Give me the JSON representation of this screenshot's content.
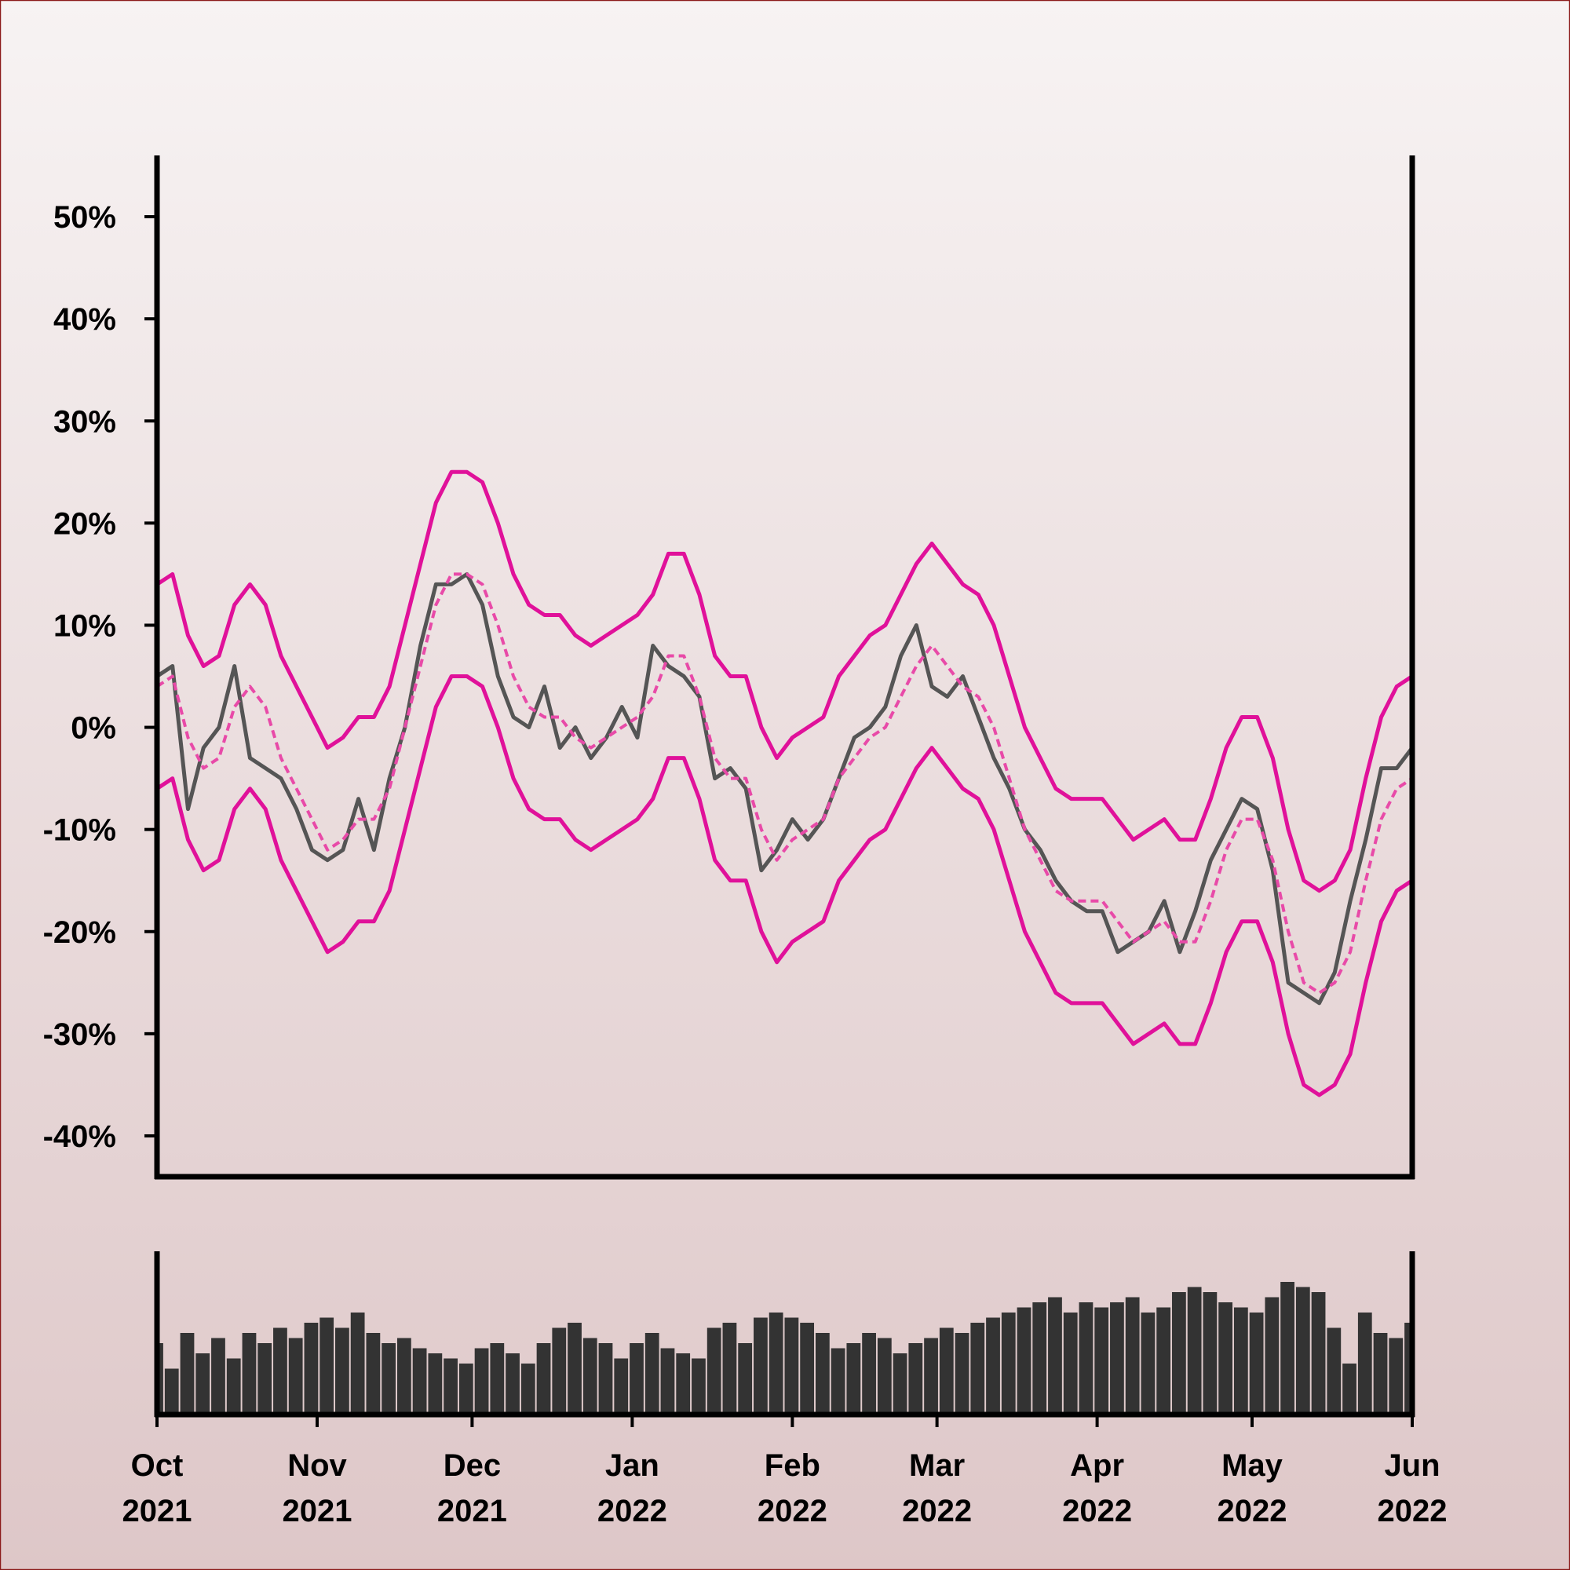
{
  "chart_data": [
    {
      "type": "line",
      "x": [
        0,
        3,
        6,
        9,
        12,
        15,
        18,
        21,
        24,
        27,
        30,
        33,
        36,
        39,
        42,
        45,
        48,
        51,
        54,
        57,
        60,
        63,
        66,
        69,
        72,
        75,
        78,
        81,
        84,
        87,
        90,
        93,
        96,
        99,
        102,
        105,
        108,
        111,
        114,
        117,
        120,
        123,
        126,
        129,
        132,
        135,
        138,
        141,
        144,
        147,
        150,
        153,
        156,
        159,
        162,
        165,
        168,
        171,
        174,
        177,
        180,
        183,
        186,
        189,
        192,
        195,
        198,
        201,
        204,
        207,
        210,
        213,
        216,
        219,
        222,
        225,
        228,
        231,
        234,
        237,
        240,
        243
      ],
      "xlim": [
        0,
        243
      ],
      "ylim": [
        -44,
        56
      ],
      "yticks": [
        {
          "value": -40,
          "label": "-40%"
        },
        {
          "value": -30,
          "label": "-30%"
        },
        {
          "value": -20,
          "label": "-20%"
        },
        {
          "value": -10,
          "label": "-10%"
        },
        {
          "value": 0,
          "label": "0%"
        },
        {
          "value": 10,
          "label": "10%"
        },
        {
          "value": 20,
          "label": "20%"
        },
        {
          "value": 30,
          "label": "30%"
        },
        {
          "value": 40,
          "label": "40%"
        },
        {
          "value": 50,
          "label": "50%"
        }
      ],
      "series": [
        {
          "color": "#e0119a",
          "style": "solid",
          "values": [
            14,
            15,
            9,
            6,
            7,
            12,
            14,
            12,
            7,
            4,
            1,
            -2,
            -1,
            1,
            1,
            4,
            10,
            16,
            22,
            25,
            25,
            24,
            20,
            15,
            12,
            11,
            11,
            9,
            8,
            9,
            10,
            11,
            13,
            17,
            17,
            13,
            7,
            5,
            5,
            0,
            -3,
            -1,
            0,
            1,
            5,
            7,
            9,
            10,
            13,
            16,
            18,
            16,
            14,
            13,
            10,
            5,
            0,
            -3,
            -6,
            -7,
            -7,
            -7,
            -9,
            -11,
            -10,
            -9,
            -11,
            -11,
            -7,
            -2,
            1,
            1,
            -3,
            -10,
            -15,
            -16,
            -15,
            -12,
            -5,
            1,
            4,
            5
          ]
        },
        {
          "color": "#e0119a",
          "style": "solid",
          "values": [
            -6,
            -5,
            -11,
            -14,
            -13,
            -8,
            -6,
            -8,
            -13,
            -16,
            -19,
            -22,
            -21,
            -19,
            -19,
            -16,
            -10,
            -4,
            2,
            5,
            5,
            4,
            0,
            -5,
            -8,
            -9,
            -9,
            -11,
            -12,
            -11,
            -10,
            -9,
            -7,
            -3,
            -3,
            -7,
            -13,
            -15,
            -15,
            -20,
            -23,
            -21,
            -20,
            -19,
            -15,
            -13,
            -11,
            -10,
            -7,
            -4,
            -2,
            -4,
            -6,
            -7,
            -10,
            -15,
            -20,
            -23,
            -26,
            -27,
            -27,
            -27,
            -29,
            -31,
            -30,
            -29,
            -31,
            -31,
            -27,
            -22,
            -19,
            -19,
            -23,
            -30,
            -35,
            -36,
            -35,
            -32,
            -25,
            -19,
            -16,
            -15
          ]
        },
        {
          "color": "#555555",
          "style": "solid",
          "values": [
            5,
            6,
            -8,
            -2,
            0,
            6,
            -3,
            -4,
            -5,
            -8,
            -12,
            -13,
            -12,
            -7,
            -12,
            -5,
            0,
            8,
            14,
            14,
            15,
            12,
            5,
            1,
            0,
            4,
            -2,
            0,
            -3,
            -1,
            2,
            -1,
            8,
            6,
            5,
            3,
            -5,
            -4,
            -6,
            -14,
            -12,
            -9,
            -11,
            -9,
            -5,
            -1,
            0,
            2,
            7,
            10,
            4,
            3,
            5,
            1,
            -3,
            -6,
            -10,
            -12,
            -15,
            -17,
            -18,
            -18,
            -22,
            -21,
            -20,
            -17,
            -22,
            -18,
            -13,
            -10,
            -7,
            -8,
            -14,
            -25,
            -26,
            -27,
            -24,
            -17,
            -11,
            -4,
            -4,
            -2
          ]
        },
        {
          "color": "#e84aa8",
          "style": "dashed",
          "values": [
            4,
            5,
            -1,
            -4,
            -3,
            2,
            4,
            2,
            -3,
            -6,
            -9,
            -12,
            -11,
            -9,
            -9,
            -6,
            0,
            6,
            12,
            15,
            15,
            14,
            10,
            5,
            2,
            1,
            1,
            -1,
            -2,
            -1,
            0,
            1,
            3,
            7,
            7,
            3,
            -3,
            -5,
            -5,
            -10,
            -13,
            -11,
            -10,
            -9,
            -5,
            -3,
            -1,
            0,
            3,
            6,
            8,
            6,
            4,
            3,
            0,
            -5,
            -10,
            -13,
            -16,
            -17,
            -17,
            -17,
            -19,
            -21,
            -20,
            -19,
            -21,
            -21,
            -17,
            -12,
            -9,
            -9,
            -13,
            -20,
            -25,
            -26,
            -25,
            -22,
            -15,
            -9,
            -6,
            -5
          ]
        }
      ]
    },
    {
      "type": "bar",
      "x": [
        0,
        3,
        6,
        9,
        12,
        15,
        18,
        21,
        24,
        27,
        30,
        33,
        36,
        39,
        42,
        45,
        48,
        51,
        54,
        57,
        60,
        63,
        66,
        69,
        72,
        75,
        78,
        81,
        84,
        87,
        90,
        93,
        96,
        99,
        102,
        105,
        108,
        111,
        114,
        117,
        120,
        123,
        126,
        129,
        132,
        135,
        138,
        141,
        144,
        147,
        150,
        153,
        156,
        159,
        162,
        165,
        168,
        171,
        174,
        177,
        180,
        183,
        186,
        189,
        192,
        195,
        198,
        201,
        204,
        207,
        210,
        213,
        216,
        219,
        222,
        225,
        228,
        231,
        234,
        237,
        240,
        243
      ],
      "values": [
        70,
        45,
        80,
        60,
        75,
        55,
        80,
        70,
        85,
        75,
        90,
        95,
        85,
        100,
        80,
        70,
        75,
        65,
        60,
        55,
        50,
        65,
        70,
        60,
        50,
        70,
        85,
        90,
        75,
        70,
        55,
        70,
        80,
        65,
        60,
        55,
        85,
        90,
        70,
        95,
        100,
        95,
        90,
        80,
        65,
        70,
        80,
        75,
        60,
        70,
        75,
        85,
        80,
        90,
        95,
        100,
        105,
        110,
        115,
        100,
        110,
        105,
        110,
        115,
        100,
        105,
        120,
        125,
        120,
        110,
        105,
        100,
        115,
        130,
        125,
        120,
        85,
        50,
        100,
        80,
        75,
        90
      ],
      "color": "#333333",
      "xlim": [
        0,
        243
      ],
      "ylim": [
        0,
        160
      ],
      "xticks": [
        {
          "value": 0,
          "label": "Oct 2021"
        },
        {
          "value": 31,
          "label": "Nov 2021"
        },
        {
          "value": 61,
          "label": "Dec 2021"
        },
        {
          "value": 92,
          "label": "Jan 2022"
        },
        {
          "value": 123,
          "label": "Feb 2022"
        },
        {
          "value": 151,
          "label": "Mar 2022"
        },
        {
          "value": 182,
          "label": "Apr 2022"
        },
        {
          "value": 212,
          "label": "May 2022"
        },
        {
          "value": 243,
          "label": "Jun 2022"
        }
      ]
    }
  ]
}
